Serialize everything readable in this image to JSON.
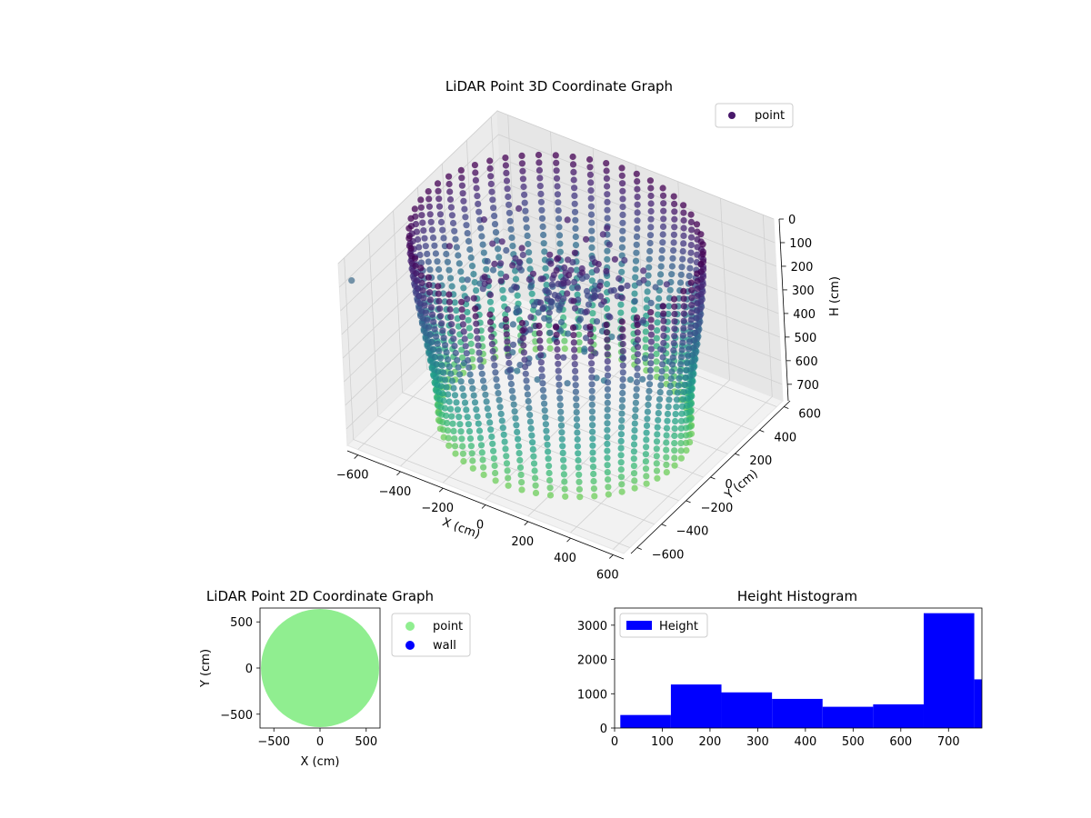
{
  "chart_data": [
    {
      "type": "scatter",
      "projection": "3d",
      "title": "LiDAR Point 3D Coordinate Graph",
      "xlabel": "X (cm)",
      "ylabel": "Y (cm)",
      "zlabel": "H (cm)",
      "xlim": [
        -650,
        650
      ],
      "ylim": [
        -650,
        650
      ],
      "zlim": [
        770,
        0
      ],
      "x_ticks": [
        "−600",
        "−400",
        "−200",
        "0",
        "200",
        "400",
        "600"
      ],
      "y_ticks": [
        "−600",
        "−400",
        "−200",
        "0",
        "200",
        "400",
        "600"
      ],
      "z_ticks": [
        "0",
        "100",
        "200",
        "300",
        "400",
        "500",
        "600",
        "700"
      ],
      "z_inverted": true,
      "colormap": "viridis",
      "grid": true,
      "legend_position": "upper-right",
      "series": [
        {
          "name": "point",
          "color": "#48186a",
          "shape": "cylindrical wall of vertical scan columns, radius ~600 cm, height 0 to ~770 cm, plus interior points radiating from center near top",
          "wall_radius": 600,
          "column_count": 54,
          "height_range": [
            0,
            770
          ]
        }
      ]
    },
    {
      "type": "scatter",
      "title": "LiDAR Point 2D Coordinate Graph",
      "xlabel": "X (cm)",
      "ylabel": "Y (cm)",
      "xlim": [
        -650,
        650
      ],
      "ylim": [
        -650,
        650
      ],
      "x_ticks": [
        "−500",
        "0",
        "500"
      ],
      "y_ticks": [
        "500",
        "0",
        "−500"
      ],
      "legend_position": "outside-right",
      "series": [
        {
          "name": "point",
          "color": "#90ee90",
          "shape": "filled disk of radius ~640 cm"
        },
        {
          "name": "wall",
          "color": "#0000ff"
        }
      ]
    },
    {
      "type": "histogram",
      "title": "Height Histogram",
      "xlim": [
        0,
        770
      ],
      "ylim": [
        0,
        3500
      ],
      "x_ticks": [
        "0",
        "100",
        "200",
        "300",
        "400",
        "500",
        "600",
        "700"
      ],
      "y_ticks": [
        "0",
        "1000",
        "2000",
        "3000"
      ],
      "legend_position": "upper-left",
      "series": [
        {
          "name": "Height",
          "color": "#0000ff",
          "bin_edges": [
            12,
            118,
            224,
            330,
            436,
            542,
            648,
            754,
            770
          ],
          "counts": [
            380,
            1270,
            1040,
            850,
            620,
            690,
            3350,
            1420
          ]
        }
      ]
    }
  ]
}
